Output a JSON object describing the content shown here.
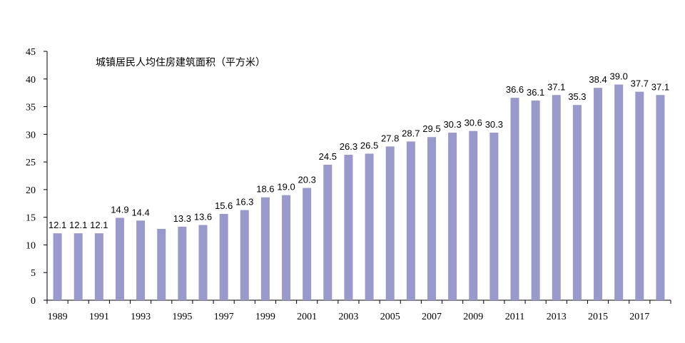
{
  "chart_data": {
    "type": "bar",
    "title": "城镇居民人均住房建筑面积（平方米）",
    "xlabel": "",
    "ylabel": "",
    "ylim": [
      0,
      45
    ],
    "yticks": [
      "0",
      "5",
      "10",
      "15",
      "20",
      "25",
      "30",
      "35",
      "40",
      "45"
    ],
    "categories": [
      "1989",
      "1990",
      "1991",
      "1992",
      "1993",
      "1994",
      "1995",
      "1996",
      "1997",
      "1998",
      "1999",
      "2000",
      "2001",
      "2002",
      "2003",
      "2004",
      "2005",
      "2006",
      "2007",
      "2008",
      "2009",
      "2010",
      "2011",
      "2012",
      "2013",
      "2014",
      "2015",
      "2016",
      "2017",
      "2018"
    ],
    "xtick_labels": [
      "1989",
      "",
      "1991",
      "",
      "1993",
      "",
      "1995",
      "",
      "1997",
      "",
      "1999",
      "",
      "2001",
      "",
      "2003",
      "",
      "2005",
      "",
      "2007",
      "",
      "2009",
      "",
      "2011",
      "",
      "2013",
      "",
      "2015",
      "",
      "2017",
      ""
    ],
    "values": [
      12.1,
      12.1,
      12.1,
      14.9,
      14.4,
      12.9,
      13.3,
      13.6,
      15.6,
      16.3,
      18.6,
      19.0,
      20.3,
      24.5,
      26.3,
      26.5,
      27.8,
      28.7,
      29.5,
      30.3,
      30.6,
      30.3,
      36.6,
      36.1,
      37.1,
      35.3,
      38.4,
      39.0,
      37.7,
      37.1
    ],
    "value_labels": [
      "12.1",
      "12.1",
      "12.1",
      "14.9",
      "14.4",
      "12.9",
      "13.3",
      "13.6",
      "15.6",
      "16.3",
      "18.6",
      "19.0",
      "20.3",
      "24.5",
      "26.3",
      "26.5",
      "27.8",
      "28.7",
      "29.5",
      "30.3",
      "30.6",
      "30.3",
      "36.6",
      "36.1",
      "37.1",
      "35.3",
      "38.4",
      "39.0",
      "37.7",
      "37.1"
    ],
    "show_value_label": [
      true,
      true,
      true,
      true,
      true,
      false,
      true,
      true,
      true,
      true,
      true,
      true,
      true,
      true,
      true,
      true,
      true,
      true,
      true,
      true,
      true,
      true,
      true,
      true,
      true,
      true,
      true,
      true,
      true,
      true
    ],
    "bar_color": "#9999cc",
    "grid": false,
    "legend": "none"
  }
}
